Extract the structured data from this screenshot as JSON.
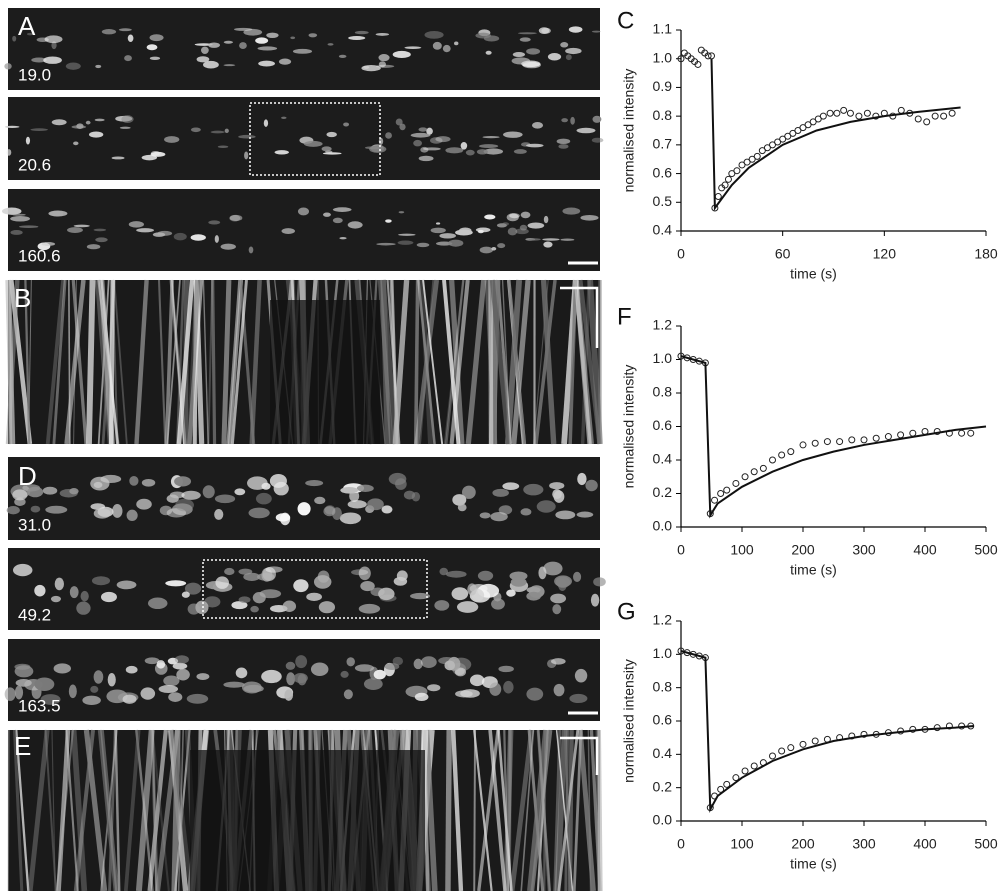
{
  "panels": [
    {
      "label": "A",
      "frames": [
        "19.0",
        "20.6",
        "160.6"
      ]
    },
    {
      "label": "B"
    },
    {
      "label": "D",
      "frames": [
        "31.0",
        "49.2",
        "163.5"
      ]
    },
    {
      "label": "E"
    }
  ],
  "chart_data": [
    {
      "type": "scatter",
      "label": "C",
      "ylabel": "normalised intensity",
      "xlabel": "time (s)",
      "xlim": [
        0,
        180
      ],
      "xticks": [
        0,
        60,
        120,
        180
      ],
      "ylim": [
        0.4,
        1.1
      ],
      "yticks": [
        0.4,
        0.5,
        0.6,
        0.7,
        0.8,
        0.9,
        {
          "value": 1,
          "label": "1.0"
        },
        1.1
      ],
      "series": [
        {
          "type": "scatter",
          "color": "#222222",
          "x": [
            0,
            2,
            4,
            6,
            8,
            10,
            12,
            14,
            16,
            18,
            20,
            22,
            24,
            26,
            28,
            30,
            33,
            36,
            39,
            42,
            45,
            48,
            51,
            54,
            57,
            60,
            63,
            66,
            69,
            72,
            75,
            78,
            81,
            84,
            88,
            92,
            96,
            100,
            105,
            110,
            115,
            120,
            125,
            130,
            135,
            140,
            145,
            150,
            155,
            160
          ],
          "values": [
            1.0,
            1.02,
            1.01,
            1.0,
            0.99,
            0.98,
            1.03,
            1.02,
            1.01,
            1.01,
            0.48,
            0.52,
            0.55,
            0.56,
            0.58,
            0.6,
            0.61,
            0.63,
            0.64,
            0.65,
            0.66,
            0.68,
            0.69,
            0.7,
            0.71,
            0.72,
            0.73,
            0.74,
            0.75,
            0.76,
            0.77,
            0.78,
            0.79,
            0.8,
            0.81,
            0.81,
            0.82,
            0.81,
            0.8,
            0.81,
            0.8,
            0.81,
            0.8,
            0.82,
            0.81,
            0.79,
            0.78,
            0.8,
            0.8,
            0.81
          ]
        },
        {
          "type": "line",
          "color": "#111111",
          "x": [
            18,
            20,
            30,
            40,
            60,
            80,
            100,
            120,
            140,
            165
          ],
          "values": [
            1.0,
            0.48,
            0.56,
            0.62,
            0.7,
            0.75,
            0.78,
            0.8,
            0.815,
            0.83
          ]
        }
      ]
    },
    {
      "type": "scatter",
      "label": "F",
      "ylabel": "normalised intensity",
      "xlabel": "time (s)",
      "xlim": [
        0,
        500
      ],
      "xticks": [
        0,
        100,
        200,
        300,
        400,
        500
      ],
      "ylim": [
        0,
        1.2
      ],
      "yticks": [
        {
          "value": 0,
          "label": "0.0"
        },
        0.2,
        0.4,
        0.6,
        0.8,
        {
          "value": 1,
          "label": "1.0"
        },
        1.2
      ],
      "series": [
        {
          "type": "scatter",
          "color": "#222222",
          "x": [
            0,
            10,
            20,
            30,
            40,
            48,
            55,
            65,
            75,
            90,
            105,
            120,
            135,
            150,
            165,
            180,
            200,
            220,
            240,
            260,
            280,
            300,
            320,
            340,
            360,
            380,
            400,
            420,
            440,
            460,
            475
          ],
          "values": [
            1.02,
            1.01,
            1.0,
            0.99,
            0.98,
            0.08,
            0.16,
            0.2,
            0.22,
            0.26,
            0.3,
            0.33,
            0.35,
            0.4,
            0.43,
            0.45,
            0.49,
            0.5,
            0.51,
            0.51,
            0.52,
            0.52,
            0.53,
            0.54,
            0.55,
            0.56,
            0.57,
            0.57,
            0.56,
            0.56,
            0.56
          ]
        },
        {
          "type": "line",
          "color": "#111111",
          "x": [
            0,
            40,
            48,
            60,
            100,
            150,
            200,
            250,
            300,
            350,
            400,
            450,
            500
          ],
          "values": [
            1.02,
            0.98,
            0.07,
            0.14,
            0.24,
            0.33,
            0.4,
            0.45,
            0.49,
            0.52,
            0.55,
            0.58,
            0.6
          ]
        }
      ]
    },
    {
      "type": "scatter",
      "label": "G",
      "ylabel": "normalised intensity",
      "xlabel": "time (s)",
      "xlim": [
        0,
        500
      ],
      "xticks": [
        0,
        100,
        200,
        300,
        400,
        500
      ],
      "ylim": [
        0,
        1.2
      ],
      "yticks": [
        {
          "value": 0,
          "label": "0.0"
        },
        0.2,
        0.4,
        0.6,
        0.8,
        {
          "value": 1,
          "label": "1.0"
        },
        1.2
      ],
      "series": [
        {
          "type": "scatter",
          "color": "#222222",
          "x": [
            0,
            10,
            20,
            30,
            40,
            48,
            55,
            65,
            75,
            90,
            105,
            120,
            135,
            150,
            165,
            180,
            200,
            220,
            240,
            260,
            280,
            300,
            320,
            340,
            360,
            380,
            400,
            420,
            440,
            460,
            475
          ],
          "values": [
            1.02,
            1.01,
            1.0,
            0.99,
            0.98,
            0.08,
            0.15,
            0.19,
            0.22,
            0.26,
            0.3,
            0.33,
            0.35,
            0.39,
            0.42,
            0.44,
            0.46,
            0.48,
            0.49,
            0.5,
            0.51,
            0.52,
            0.52,
            0.53,
            0.54,
            0.55,
            0.55,
            0.56,
            0.57,
            0.57,
            0.57
          ]
        },
        {
          "type": "line",
          "color": "#111111",
          "x": [
            0,
            40,
            48,
            60,
            100,
            150,
            200,
            250,
            300,
            350,
            400,
            450,
            480
          ],
          "values": [
            1.02,
            0.98,
            0.07,
            0.15,
            0.26,
            0.36,
            0.43,
            0.48,
            0.51,
            0.53,
            0.55,
            0.56,
            0.57
          ]
        }
      ]
    }
  ]
}
